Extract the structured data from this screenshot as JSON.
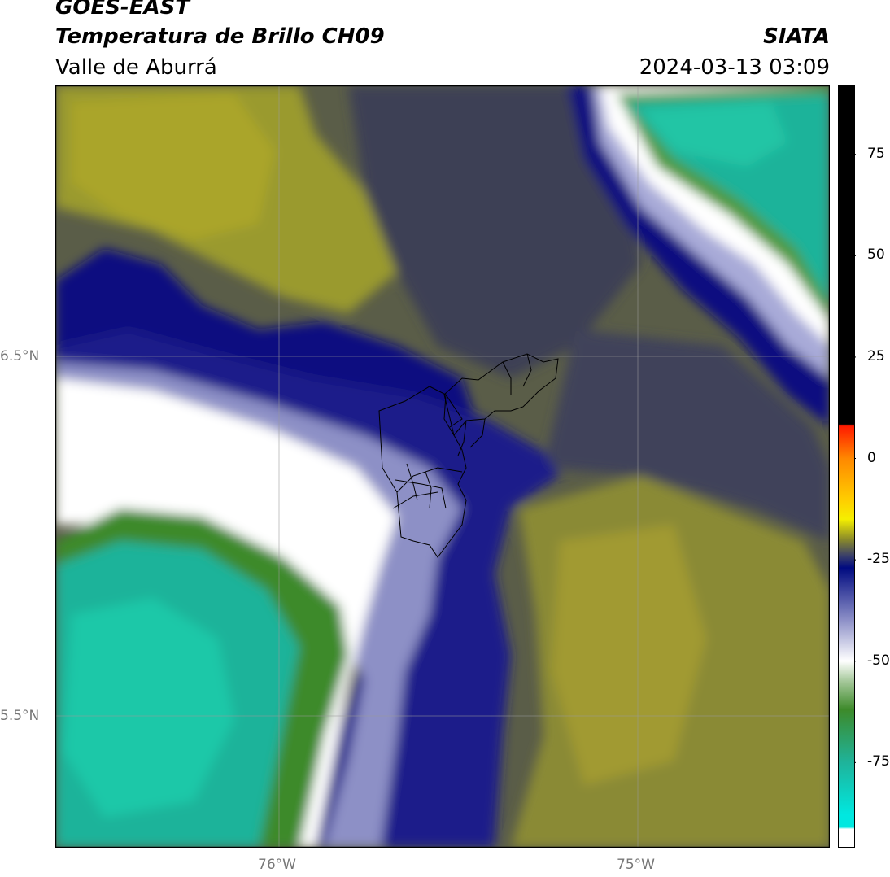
{
  "header": {
    "satellite": "GOES-EAST",
    "product": "Temperatura de Brillo CH09",
    "region": "Valle de Aburrá",
    "agency": "SIATA",
    "datetime": "2024-03-13 03:09"
  },
  "map": {
    "lat_labels": [
      "6.5°N",
      "5.5°N"
    ],
    "lon_labels": [
      "76°W",
      "75°W"
    ]
  },
  "colorbar": {
    "ticks": [
      "75",
      "50",
      "25",
      "0",
      "-25",
      "-50",
      "-75"
    ],
    "range": [
      -96,
      92
    ],
    "stops": [
      {
        "v": 92,
        "c": "#000000"
      },
      {
        "v": 8.5,
        "c": "#000000"
      },
      {
        "v": 8,
        "c": "#ff1a00"
      },
      {
        "v": 0,
        "c": "#ff8800"
      },
      {
        "v": -10,
        "c": "#ffcc00"
      },
      {
        "v": -15,
        "c": "#f5ef00"
      },
      {
        "v": -20,
        "c": "#8a8a2a"
      },
      {
        "v": -24,
        "c": "#3a3f6a"
      },
      {
        "v": -27,
        "c": "#000a80"
      },
      {
        "v": -40,
        "c": "#8e91c8"
      },
      {
        "v": -50,
        "c": "#ffffff"
      },
      {
        "v": -55,
        "c": "#a5c89a"
      },
      {
        "v": -62,
        "c": "#3d8a2a"
      },
      {
        "v": -75,
        "c": "#1fb39a"
      },
      {
        "v": -88,
        "c": "#00e8e0"
      },
      {
        "v": -91,
        "c": "#00e8e0"
      },
      {
        "v": -91.5,
        "c": "#ffffff"
      },
      {
        "v": -96,
        "c": "#ffffff"
      }
    ]
  }
}
